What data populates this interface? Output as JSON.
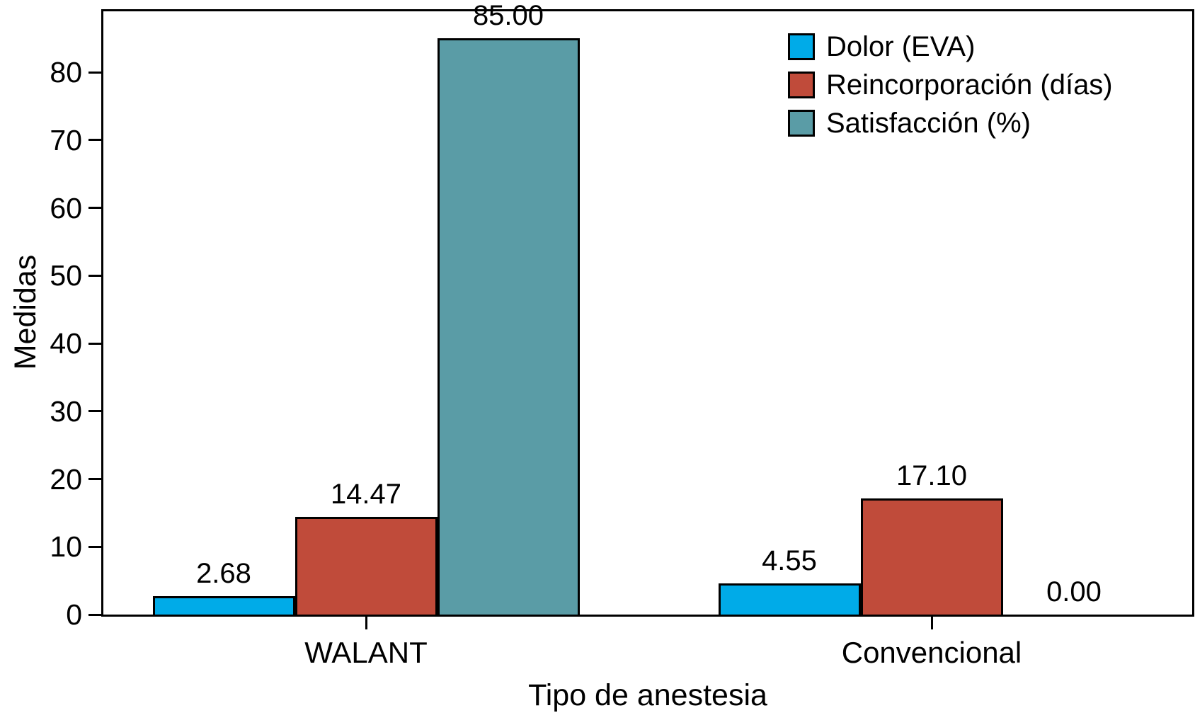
{
  "chart_data": {
    "type": "bar",
    "title": "",
    "xlabel": "Tipo de anestesia",
    "ylabel": "Medidas",
    "categories": [
      "WALANT",
      "Convencional"
    ],
    "series": [
      {
        "name": "Dolor (EVA)",
        "color": "#00ABE8",
        "values": [
          2.68,
          4.55
        ],
        "labels": [
          "2.68",
          "4.55"
        ]
      },
      {
        "name": "Reincorporación (días)",
        "color": "#C04B3A",
        "values": [
          14.47,
          17.1
        ],
        "labels": [
          "14.47",
          "17.10"
        ]
      },
      {
        "name": "Satisfacción (%)",
        "color": "#5A9CA6",
        "values": [
          85.0,
          0.0
        ],
        "labels": [
          "85.00",
          "0.00"
        ]
      }
    ],
    "y_ticks": [
      0,
      10,
      20,
      30,
      40,
      50,
      60,
      70,
      80
    ],
    "ylim": [
      0,
      89
    ],
    "grid": false,
    "legend_position": "top-right",
    "bar_edge_color": "#000000",
    "axis_color": "#000000",
    "background": "#ffffff"
  }
}
